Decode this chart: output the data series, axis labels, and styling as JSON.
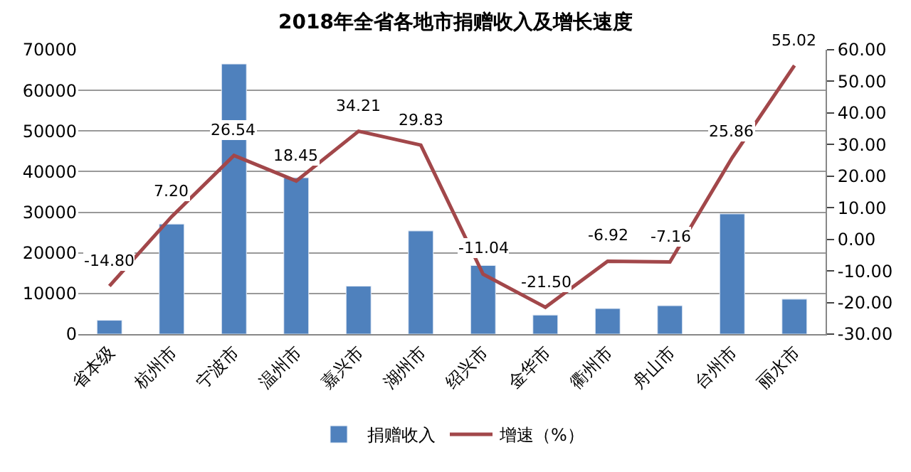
{
  "chart_data": {
    "type": "bar",
    "title": "2018年全省各地市捐赠收入及增长速度",
    "categories": [
      "省本级",
      "杭州市",
      "宁波市",
      "温州市",
      "嘉兴市",
      "湖州市",
      "绍兴市",
      "金华市",
      "衢州市",
      "舟山市",
      "台州市",
      "丽水市"
    ],
    "series": [
      {
        "name": "捐赠收入",
        "color": "#4f81bd",
        "values": [
          3400,
          27100,
          66500,
          38500,
          11800,
          25400,
          16900,
          4700,
          6300,
          7000,
          29600,
          8600
        ]
      },
      {
        "name": "增速（%）",
        "type": "line",
        "axis": "y2",
        "color": "#a2474a",
        "value_labels": [
          "-14.80",
          "7.20",
          "26.54",
          "18.45",
          "34.21",
          "29.83",
          "-11.04",
          "-21.50",
          "-6.92",
          "-7.16",
          "25.86",
          "55.02"
        ],
        "values": [
          -14.8,
          7.2,
          26.54,
          18.45,
          34.21,
          29.83,
          -11.04,
          -21.5,
          -6.92,
          -7.16,
          25.86,
          55.02
        ]
      }
    ],
    "ylim": [
      0,
      70000
    ],
    "yticks": [
      0,
      10000,
      20000,
      30000,
      40000,
      50000,
      60000,
      70000
    ],
    "y2lim": [
      -30,
      60
    ],
    "y2ticks": [
      {
        "value": -30,
        "label": "-30.00"
      },
      {
        "value": -20,
        "label": "-20.00"
      },
      {
        "value": -10,
        "label": "-10.00"
      },
      {
        "value": 0,
        "label": "0.00"
      },
      {
        "value": 10,
        "label": "10.00"
      },
      {
        "value": 20,
        "label": "20.00"
      },
      {
        "value": 30,
        "label": "30.00"
      },
      {
        "value": 40,
        "label": "40.00"
      },
      {
        "value": 50,
        "label": "50.00"
      },
      {
        "value": 60,
        "label": "60.00"
      }
    ],
    "grid": "y",
    "legend": "bottom",
    "marker": "none"
  }
}
